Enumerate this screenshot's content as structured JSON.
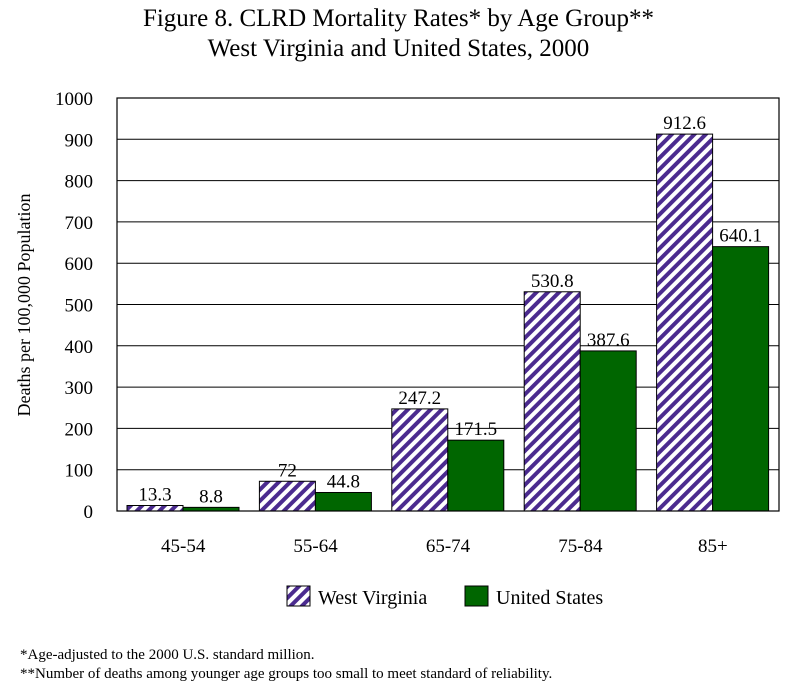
{
  "chart_data": {
    "type": "bar",
    "title": "Figure 8.  CLRD Mortality Rates* by Age Group**",
    "subtitle": "West Virginia and United States, 2000",
    "xlabel": "",
    "ylabel": "Deaths per 100,000 Population",
    "ylim": [
      0,
      1000
    ],
    "yticks": [
      0,
      100,
      200,
      300,
      400,
      500,
      600,
      700,
      800,
      900,
      1000
    ],
    "grid": true,
    "legend_position": "bottom",
    "categories": [
      "45-54",
      "55-64",
      "65-74",
      "75-84",
      "85+"
    ],
    "series": [
      {
        "name": "West Virginia",
        "values": [
          13.3,
          72,
          247.2,
          530.8,
          912.6
        ],
        "labels": [
          "13.3",
          "72",
          "247.2",
          "530.8",
          "912.6"
        ],
        "pattern": "diagonal-stripes",
        "color": "#4b2b8f",
        "background": "#ffffff"
      },
      {
        "name": "United States",
        "values": [
          8.8,
          44.8,
          171.5,
          387.6,
          640.1
        ],
        "labels": [
          "8.8",
          "44.8",
          "171.5",
          "387.6",
          "640.1"
        ],
        "pattern": "solid",
        "color": "#006600"
      }
    ]
  },
  "footnotes": [
    "*Age-adjusted to the 2000 U.S. standard million.",
    "**Number of deaths among younger age groups too small to meet standard of reliability."
  ]
}
